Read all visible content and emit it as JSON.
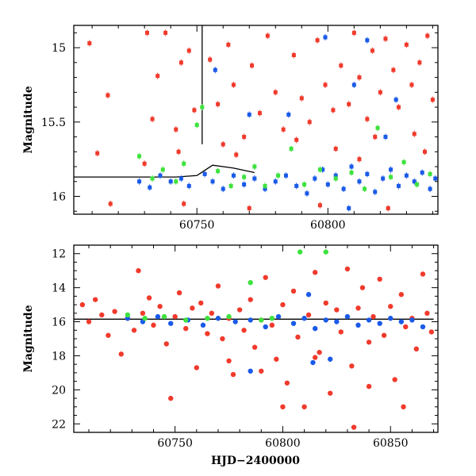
{
  "colors": {
    "red": "#f03a2c",
    "blue": "#1a5ae8",
    "green": "#3ee23e",
    "axis": "#000000"
  },
  "chart_data": [
    {
      "type": "scatter",
      "title": "",
      "xlabel": "",
      "ylabel": "Magnitude",
      "xlim": [
        60703,
        60842
      ],
      "ylim": [
        16.12,
        14.85
      ],
      "y_inverted": true,
      "xticks": [
        60750,
        60800
      ],
      "xticklabels": [
        "60750",
        "60800"
      ],
      "yticks": [
        15,
        15.5,
        16
      ],
      "yticklabels": [
        "15",
        "15.5",
        "16"
      ],
      "grid": false,
      "reference_line": {
        "x": [
          60703,
          60742,
          60750,
          60756,
          60764,
          60772
        ],
        "y": [
          15.87,
          15.87,
          15.86,
          15.79,
          15.81,
          15.84
        ]
      },
      "vertical_markers": [
        {
          "x": 60752,
          "y_from": 14.85,
          "y_to": 15.65
        }
      ],
      "series": [
        {
          "color": "red",
          "points": [
            [
              60709,
              14.97
            ],
            [
              60712,
              15.71
            ],
            [
              60716,
              15.32
            ],
            [
              60717,
              16.05
            ],
            [
              60731,
              14.9
            ],
            [
              60733,
              15.48
            ],
            [
              60735,
              15.19
            ],
            [
              60738,
              14.9
            ],
            [
              60742,
              15.55
            ],
            [
              60744,
              15.1
            ],
            [
              60747,
              15.02
            ],
            [
              60749,
              15.42
            ],
            [
              60755,
              15.08
            ],
            [
              60758,
              15.38
            ],
            [
              60762,
              14.98
            ],
            [
              60764,
              15.25
            ],
            [
              60768,
              15.6
            ],
            [
              60771,
              15.12
            ],
            [
              60774,
              15.44
            ],
            [
              60777,
              14.92
            ],
            [
              60780,
              15.3
            ],
            [
              60783,
              15.55
            ],
            [
              60787,
              15.05
            ],
            [
              60790,
              15.34
            ],
            [
              60793,
              15.5
            ],
            [
              60796,
              14.95
            ],
            [
              60799,
              15.25
            ],
            [
              60802,
              15.42
            ],
            [
              60805,
              15.12
            ],
            [
              60808,
              15.38
            ],
            [
              60810,
              14.9
            ],
            [
              60812,
              15.2
            ],
            [
              60815,
              15.48
            ],
            [
              60817,
              15.02
            ],
            [
              60820,
              15.3
            ],
            [
              60822,
              14.94
            ],
            [
              60825,
              15.15
            ],
            [
              60827,
              15.4
            ],
            [
              60830,
              14.98
            ],
            [
              60832,
              15.25
            ],
            [
              60835,
              15.1
            ],
            [
              60838,
              14.92
            ],
            [
              60840,
              15.35
            ],
            [
              60743,
              15.7
            ],
            [
              60760,
              15.65
            ],
            [
              60788,
              15.62
            ],
            [
              60803,
              15.68
            ],
            [
              60818,
              15.6
            ],
            [
              60833,
              15.58
            ],
            [
              60745,
              16.05
            ],
            [
              60770,
              16.08
            ],
            [
              60797,
              16.06
            ],
            [
              60823,
              16.08
            ],
            [
              60730,
              15.78
            ],
            [
              60765,
              15.72
            ],
            [
              60812,
              15.75
            ],
            [
              60837,
              15.7
            ]
          ]
        },
        {
          "color": "blue",
          "points": [
            [
              60728,
              15.9
            ],
            [
              60732,
              15.94
            ],
            [
              60736,
              15.86
            ],
            [
              60740,
              15.9
            ],
            [
              60744,
              15.88
            ],
            [
              60747,
              15.93
            ],
            [
              60753,
              15.85
            ],
            [
              60756,
              15.9
            ],
            [
              60760,
              15.95
            ],
            [
              60764,
              15.86
            ],
            [
              60768,
              15.92
            ],
            [
              60772,
              15.88
            ],
            [
              60776,
              15.95
            ],
            [
              60780,
              15.9
            ],
            [
              60784,
              15.86
            ],
            [
              60788,
              15.93
            ],
            [
              60792,
              15.98
            ],
            [
              60795,
              15.88
            ],
            [
              60798,
              15.82
            ],
            [
              60800,
              15.92
            ],
            [
              60803,
              15.86
            ],
            [
              60806,
              15.95
            ],
            [
              60809,
              15.8
            ],
            [
              60812,
              15.9
            ],
            [
              60815,
              15.85
            ],
            [
              60818,
              15.97
            ],
            [
              60821,
              15.88
            ],
            [
              60824,
              15.82
            ],
            [
              60827,
              15.93
            ],
            [
              60830,
              15.86
            ],
            [
              60833,
              15.9
            ],
            [
              60836,
              15.84
            ],
            [
              60839,
              15.95
            ],
            [
              60841,
              15.88
            ],
            [
              60799,
              14.93
            ],
            [
              60810,
              15.25
            ],
            [
              60815,
              14.95
            ],
            [
              60757,
              15.15
            ],
            [
              60785,
              15.45
            ],
            [
              60822,
              15.6
            ],
            [
              60826,
              15.35
            ],
            [
              60808,
              16.08
            ],
            [
              60770,
              15.45
            ]
          ]
        },
        {
          "color": "green",
          "points": [
            [
              60728,
              15.73
            ],
            [
              60733,
              15.88
            ],
            [
              60737,
              15.82
            ],
            [
              60742,
              15.9
            ],
            [
              60745,
              15.78
            ],
            [
              60750,
              15.52
            ],
            [
              60752,
              15.4
            ],
            [
              60758,
              15.83
            ],
            [
              60763,
              15.93
            ],
            [
              60768,
              15.87
            ],
            [
              60772,
              15.8
            ],
            [
              60776,
              15.93
            ],
            [
              60781,
              15.86
            ],
            [
              60786,
              15.68
            ],
            [
              60791,
              15.92
            ],
            [
              60797,
              15.82
            ],
            [
              60803,
              15.88
            ],
            [
              60809,
              15.84
            ],
            [
              60814,
              15.95
            ],
            [
              60819,
              15.54
            ],
            [
              60824,
              15.87
            ],
            [
              60829,
              15.77
            ],
            [
              60834,
              15.92
            ],
            [
              60839,
              15.85
            ]
          ]
        }
      ]
    },
    {
      "type": "scatter",
      "title": "",
      "xlabel": "HJD−2400000",
      "ylabel": "Magnitude",
      "xlim": [
        60703,
        60872
      ],
      "ylim": [
        22.5,
        11.5
      ],
      "y_inverted": true,
      "xticks": [
        60750,
        60800,
        60850
      ],
      "xticklabels": [
        "60750",
        "60800",
        "60850"
      ],
      "yticks": [
        12,
        14,
        16,
        18,
        20,
        22
      ],
      "yticklabels": [
        "12",
        "14",
        "16",
        "18",
        "20",
        "22"
      ],
      "grid": false,
      "reference_line": {
        "x": [
          60703,
          60870
        ],
        "y": [
          15.85,
          15.85
        ]
      },
      "series": [
        {
          "color": "red",
          "points": [
            [
              60707,
              15.0
            ],
            [
              60710,
              16.0
            ],
            [
              60713,
              14.7
            ],
            [
              60716,
              15.6
            ],
            [
              60719,
              16.8
            ],
            [
              60722,
              15.4
            ],
            [
              60725,
              17.9
            ],
            [
              60728,
              15.8
            ],
            [
              60731,
              16.5
            ],
            [
              60733,
              13.0
            ],
            [
              60735,
              15.5
            ],
            [
              60738,
              14.6
            ],
            [
              60740,
              16.2
            ],
            [
              60743,
              15.1
            ],
            [
              60746,
              17.3
            ],
            [
              60748,
              20.5
            ],
            [
              60750,
              15.7
            ],
            [
              60752,
              14.3
            ],
            [
              60755,
              16.4
            ],
            [
              60758,
              15.2
            ],
            [
              60760,
              18.7
            ],
            [
              60762,
              14.9
            ],
            [
              60765,
              16.7
            ],
            [
              60767,
              15.5
            ],
            [
              60770,
              13.9
            ],
            [
              60772,
              17.0
            ],
            [
              60775,
              15.8
            ],
            [
              60777,
              19.1
            ],
            [
              60780,
              15.3
            ],
            [
              60782,
              16.5
            ],
            [
              60785,
              14.7
            ],
            [
              60787,
              17.5
            ],
            [
              60790,
              15.9
            ],
            [
              60792,
              13.4
            ],
            [
              60795,
              16.2
            ],
            [
              60797,
              18.2
            ],
            [
              60800,
              15.0
            ],
            [
              60802,
              19.6
            ],
            [
              60805,
              14.2
            ],
            [
              60807,
              16.9
            ],
            [
              60810,
              21.0
            ],
            [
              60812,
              15.6
            ],
            [
              60815,
              13.1
            ],
            [
              60817,
              17.8
            ],
            [
              60820,
              14.9
            ],
            [
              60822,
              20.2
            ],
            [
              60825,
              15.3
            ],
            [
              60827,
              16.6
            ],
            [
              60830,
              12.9
            ],
            [
              60832,
              18.6
            ],
            [
              60835,
              15.2
            ],
            [
              60837,
              14.0
            ],
            [
              60840,
              17.2
            ],
            [
              60842,
              15.7
            ],
            [
              60845,
              13.5
            ],
            [
              60847,
              16.8
            ],
            [
              60850,
              15.1
            ],
            [
              60852,
              19.4
            ],
            [
              60855,
              14.4
            ],
            [
              60857,
              16.3
            ],
            [
              60860,
              15.8
            ],
            [
              60862,
              17.6
            ],
            [
              60865,
              13.2
            ],
            [
              60867,
              15.5
            ],
            [
              60869,
              16.6
            ],
            [
              60833,
              22.2
            ],
            [
              60856,
              21.0
            ],
            [
              60815,
              18.1
            ],
            [
              60790,
              18.9
            ],
            [
              60775,
              18.3
            ],
            [
              60840,
              19.8
            ],
            [
              60800,
              21.0
            ]
          ]
        },
        {
          "color": "blue",
          "points": [
            [
              60728,
              15.8
            ],
            [
              60735,
              16.0
            ],
            [
              60742,
              15.7
            ],
            [
              60748,
              16.1
            ],
            [
              60756,
              15.9
            ],
            [
              60763,
              16.2
            ],
            [
              60770,
              15.8
            ],
            [
              60778,
              16.0
            ],
            [
              60785,
              15.9
            ],
            [
              60792,
              16.3
            ],
            [
              60798,
              15.7
            ],
            [
              60805,
              16.1
            ],
            [
              60810,
              15.8
            ],
            [
              60815,
              16.4
            ],
            [
              60820,
              15.9
            ],
            [
              60825,
              16.0
            ],
            [
              60830,
              15.7
            ],
            [
              60835,
              16.2
            ],
            [
              60840,
              15.9
            ],
            [
              60845,
              16.1
            ],
            [
              60850,
              15.8
            ],
            [
              60855,
              16.0
            ],
            [
              60860,
              15.9
            ],
            [
              60865,
              16.3
            ],
            [
              60785,
              18.9
            ],
            [
              60814,
              18.4
            ],
            [
              60822,
              18.2
            ],
            [
              60812,
              14.4
            ]
          ]
        },
        {
          "color": "green",
          "points": [
            [
              60728,
              15.6
            ],
            [
              60736,
              15.8
            ],
            [
              60745,
              15.7
            ],
            [
              60755,
              15.9
            ],
            [
              60765,
              15.8
            ],
            [
              60775,
              15.7
            ],
            [
              60785,
              13.7
            ],
            [
              60790,
              15.9
            ],
            [
              60795,
              15.8
            ],
            [
              60808,
              11.9
            ],
            [
              60820,
              11.9
            ]
          ]
        }
      ]
    }
  ]
}
